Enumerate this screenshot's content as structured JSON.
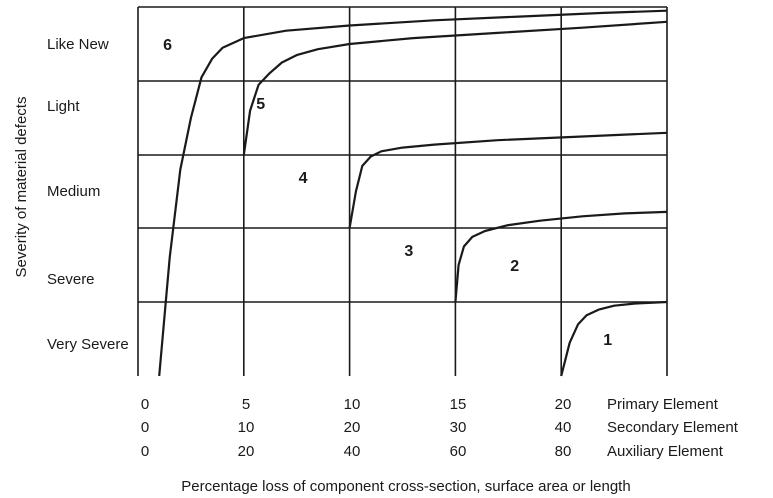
{
  "chart_data": {
    "type": "line",
    "title": "",
    "ylabel": "Severity of material defects",
    "xlabel": "Percentage loss of component cross-section, surface area or length",
    "y_categories": [
      "Very Severe",
      "Severe",
      "Medium",
      "Light",
      "Like New"
    ],
    "x_scales": [
      {
        "name": "Primary Element",
        "ticks": [
          "0",
          "5",
          "10",
          "15",
          "20"
        ]
      },
      {
        "name": "Secondary Element",
        "ticks": [
          "0",
          "10",
          "20",
          "30",
          "40"
        ]
      },
      {
        "name": "Auxiliary Element",
        "ticks": [
          "0",
          "20",
          "40",
          "60",
          "80"
        ]
      }
    ],
    "xlim": [
      0,
      25
    ],
    "ylim": [
      0,
      5
    ],
    "grid": true,
    "series": [
      {
        "name": "1",
        "x": [
          20,
          20.4,
          20.8,
          21.2,
          21.8,
          22.5,
          23.5,
          25
        ],
        "y": [
          0,
          0.45,
          0.7,
          0.82,
          0.9,
          0.95,
          0.98,
          1.0
        ]
      },
      {
        "name": "2",
        "x": [
          15,
          15.15,
          15.4,
          15.8,
          16.4,
          17.5,
          19,
          21,
          23,
          25
        ],
        "y": [
          1,
          1.5,
          1.75,
          1.88,
          1.96,
          2.04,
          2.1,
          2.16,
          2.2,
          2.22
        ]
      },
      {
        "name": "3",
        "x": [
          10,
          10.3,
          10.6,
          11,
          11.5,
          12.5,
          14,
          17,
          21,
          25
        ],
        "y": [
          2,
          2.5,
          2.85,
          2.98,
          3.05,
          3.1,
          3.14,
          3.2,
          3.25,
          3.3
        ]
      },
      {
        "name": "4",
        "x": [
          5,
          5.3,
          5.7,
          6.2,
          6.8,
          7.5,
          8.5,
          10,
          13,
          17,
          21,
          25
        ],
        "y": [
          3,
          3.6,
          3.95,
          4.1,
          4.25,
          4.35,
          4.43,
          4.5,
          4.58,
          4.65,
          4.72,
          4.8
        ]
      },
      {
        "name": "5",
        "x": [
          1,
          1.5,
          2,
          2.5,
          3,
          3.5,
          4,
          5,
          7,
          10,
          14,
          18,
          22,
          25
        ],
        "y": [
          0,
          1.6,
          2.8,
          3.5,
          4.05,
          4.3,
          4.45,
          4.58,
          4.68,
          4.75,
          4.82,
          4.87,
          4.92,
          4.95
        ]
      }
    ],
    "annotations": [
      {
        "text": "1",
        "x": 22.2,
        "y": 0.5
      },
      {
        "text": "2",
        "x": 17.8,
        "y": 1.5
      },
      {
        "text": "3",
        "x": 12.8,
        "y": 1.7
      },
      {
        "text": "4",
        "x": 7.8,
        "y": 2.7
      },
      {
        "text": "5",
        "x": 5.8,
        "y": 3.7
      },
      {
        "text": "6",
        "x": 1.4,
        "y": 4.5
      }
    ]
  }
}
